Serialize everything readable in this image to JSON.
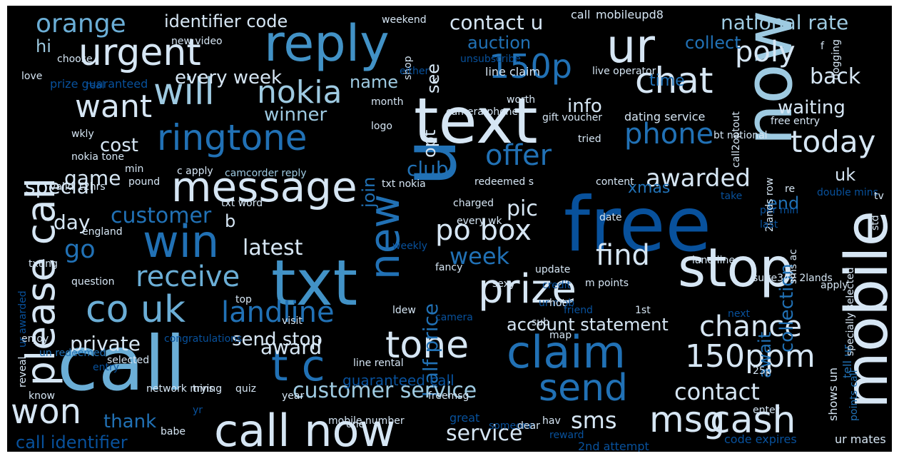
{
  "background": "#000000",
  "palette": {
    "pale": "#d6e6f4",
    "light": "#9ecae1",
    "mid": "#6baed6",
    "blue": "#4292c6",
    "deep": "#2171b5",
    "dark": "#08519c",
    "navy": "#08306b"
  },
  "words": [
    {
      "text": "free",
      "color": "dark"
    },
    {
      "text": "call",
      "color": "mid"
    },
    {
      "text": "text",
      "color": "pale"
    },
    {
      "text": "txt",
      "color": "blue"
    },
    {
      "text": "now",
      "color": "light"
    },
    {
      "text": "mobile",
      "color": "pale"
    },
    {
      "text": "stop",
      "color": "pale"
    },
    {
      "text": "u",
      "color": "deep"
    },
    {
      "text": "ur",
      "color": "pale"
    },
    {
      "text": "reply",
      "color": "blue"
    },
    {
      "text": "call now",
      "color": "pale"
    },
    {
      "text": "claim",
      "color": "deep"
    },
    {
      "text": "win",
      "color": "deep"
    },
    {
      "text": "message",
      "color": "pale"
    },
    {
      "text": "new",
      "color": "deep"
    },
    {
      "text": "please call",
      "color": "pale"
    },
    {
      "text": "prize",
      "color": "pale"
    },
    {
      "text": "won",
      "color": "pale"
    },
    {
      "text": "urgent",
      "color": "pale"
    },
    {
      "text": "ringtone",
      "color": "deep"
    },
    {
      "text": "send",
      "color": "deep"
    },
    {
      "text": "cash",
      "color": "pale"
    },
    {
      "text": "co uk",
      "color": "mid"
    },
    {
      "text": "tone",
      "color": "pale"
    },
    {
      "text": "msg",
      "color": "pale"
    },
    {
      "text": "t c",
      "color": "deep"
    },
    {
      "text": "will",
      "color": "light"
    },
    {
      "text": "chat",
      "color": "pale"
    },
    {
      "text": "150p",
      "color": "deep"
    },
    {
      "text": "landline",
      "color": "deep"
    },
    {
      "text": "nokia",
      "color": "light"
    },
    {
      "text": "receive",
      "color": "mid"
    },
    {
      "text": "want",
      "color": "pale"
    },
    {
      "text": "150ppm",
      "color": "pale"
    },
    {
      "text": "chance",
      "color": "pale"
    },
    {
      "text": "today",
      "color": "pale"
    },
    {
      "text": "phone",
      "color": "deep"
    },
    {
      "text": "offer",
      "color": "deep"
    },
    {
      "text": "po box",
      "color": "pale"
    },
    {
      "text": "find",
      "color": "pale"
    },
    {
      "text": "poly",
      "color": "pale"
    },
    {
      "text": "orange",
      "color": "mid"
    },
    {
      "text": "go",
      "color": "deep"
    },
    {
      "text": "half price",
      "color": "deep"
    },
    {
      "text": "sms",
      "color": "pale"
    },
    {
      "text": "customer service",
      "color": "light"
    },
    {
      "text": "awarded",
      "color": "pale"
    },
    {
      "text": "contact",
      "color": "pale"
    },
    {
      "text": "week",
      "color": "deep"
    },
    {
      "text": "pic",
      "color": "pale"
    },
    {
      "text": "back",
      "color": "pale"
    },
    {
      "text": "customer",
      "color": "deep"
    },
    {
      "text": "latest",
      "color": "pale"
    },
    {
      "text": "service",
      "color": "pale"
    },
    {
      "text": "collection",
      "color": "deep"
    },
    {
      "text": "await",
      "color": "deep"
    },
    {
      "text": "contact u",
      "color": "pale"
    },
    {
      "text": "national rate",
      "color": "light"
    },
    {
      "text": "special",
      "color": "pale"
    },
    {
      "text": "day",
      "color": "pale"
    },
    {
      "text": "game",
      "color": "pale"
    },
    {
      "text": "private",
      "color": "pale"
    },
    {
      "text": "award",
      "color": "pale"
    },
    {
      "text": "account statement",
      "color": "pale"
    },
    {
      "text": "call identifier",
      "color": "dark"
    },
    {
      "text": "thank",
      "color": "deep"
    },
    {
      "text": "waiting",
      "color": "pale"
    },
    {
      "text": "every week",
      "color": "pale"
    },
    {
      "text": "identifier code",
      "color": "pale"
    },
    {
      "text": "club",
      "color": "deep"
    },
    {
      "text": "send stop",
      "color": "pale"
    },
    {
      "text": "name",
      "color": "light"
    },
    {
      "text": "winner",
      "color": "light"
    },
    {
      "text": "auction",
      "color": "deep"
    },
    {
      "text": "cost",
      "color": "pale"
    },
    {
      "text": "opt",
      "color": "pale"
    },
    {
      "text": "join",
      "color": "deep"
    },
    {
      "text": "xmas",
      "color": "deep"
    },
    {
      "text": "info",
      "color": "pale"
    },
    {
      "text": "time",
      "color": "deep"
    },
    {
      "text": "uk",
      "color": "pale"
    },
    {
      "text": "end",
      "color": "deep"
    },
    {
      "text": "hi",
      "color": "light"
    },
    {
      "text": "collect",
      "color": "deep"
    },
    {
      "text": "see",
      "color": "pale"
    },
    {
      "text": "b",
      "color": "pale"
    },
    {
      "text": "guaranteed call",
      "color": "dark"
    },
    {
      "text": "mobileupd8",
      "color": "pale"
    },
    {
      "text": "call",
      "color": "pale"
    },
    {
      "text": "prize guaranteed",
      "color": "dark"
    },
    {
      "text": "dating service",
      "color": "pale"
    },
    {
      "text": "line claim",
      "color": "pale"
    },
    {
      "text": "camcorder reply",
      "color": "light"
    },
    {
      "text": "txt nokia",
      "color": "pale"
    },
    {
      "text": "redeemed s",
      "color": "pale"
    },
    {
      "text": "valid 12hrs",
      "color": "pale"
    },
    {
      "text": "freemsg",
      "color": "pale"
    },
    {
      "text": "great",
      "color": "dark"
    },
    {
      "text": "2nd attempt",
      "color": "dark"
    },
    {
      "text": "code expires",
      "color": "dark"
    },
    {
      "text": "ur mates",
      "color": "pale"
    },
    {
      "text": "points call",
      "color": "deep"
    },
    {
      "text": "shows un",
      "color": "pale"
    },
    {
      "text": "tell ur",
      "color": "deep"
    },
    {
      "text": "sms ac",
      "color": "pale"
    },
    {
      "text": "suite342 2lands",
      "color": "pale"
    },
    {
      "text": "land line",
      "color": "pale"
    },
    {
      "text": "apply",
      "color": "pale"
    },
    {
      "text": "per min",
      "color": "dark"
    },
    {
      "text": "double mins",
      "color": "dark"
    },
    {
      "text": "2lands row",
      "color": "pale"
    },
    {
      "text": "free entry",
      "color": "pale"
    },
    {
      "text": "bt national",
      "color": "pale"
    },
    {
      "text": "tried",
      "color": "pale"
    },
    {
      "text": "content",
      "color": "pale"
    },
    {
      "text": "re",
      "color": "pale"
    },
    {
      "text": "mobile number",
      "color": "pale"
    },
    {
      "text": "babe",
      "color": "pale"
    },
    {
      "text": "know",
      "color": "pale"
    },
    {
      "text": "selected",
      "color": "pale"
    },
    {
      "text": "congratulations",
      "color": "dark"
    },
    {
      "text": "reveal",
      "color": "pale"
    },
    {
      "text": "un redeemed",
      "color": "deep"
    },
    {
      "text": "question",
      "color": "pale"
    },
    {
      "text": "txting",
      "color": "pale"
    },
    {
      "text": "england",
      "color": "pale"
    },
    {
      "text": "txt word",
      "color": "pale"
    },
    {
      "text": "weekly",
      "color": "dark"
    },
    {
      "text": "charged",
      "color": "pale"
    },
    {
      "text": "every wk",
      "color": "pale"
    },
    {
      "text": "date",
      "color": "pale"
    },
    {
      "text": "last",
      "color": "dark"
    },
    {
      "text": "credit",
      "color": "dark"
    },
    {
      "text": "update",
      "color": "pale"
    },
    {
      "text": "ur mob",
      "color": "dark"
    },
    {
      "text": "m points",
      "color": "pale"
    },
    {
      "text": "sexy",
      "color": "pale"
    },
    {
      "text": "fancy",
      "color": "pale"
    },
    {
      "text": "hot",
      "color": "pale"
    },
    {
      "text": "1st",
      "color": "pale"
    },
    {
      "text": "next",
      "color": "dark"
    },
    {
      "text": "top",
      "color": "pale"
    },
    {
      "text": "visit",
      "color": "pale"
    },
    {
      "text": "sub",
      "color": "pale"
    },
    {
      "text": "friend",
      "color": "dark"
    },
    {
      "text": "camera",
      "color": "dark"
    },
    {
      "text": "camera phone",
      "color": "pale"
    },
    {
      "text": "worth",
      "color": "pale"
    },
    {
      "text": "gift voucher",
      "color": "pale"
    },
    {
      "text": "live operator",
      "color": "pale"
    },
    {
      "text": "call2optout",
      "color": "pale"
    },
    {
      "text": "unsubscribe",
      "color": "dark"
    },
    {
      "text": "choose",
      "color": "pale"
    },
    {
      "text": "love",
      "color": "pale"
    },
    {
      "text": "new video",
      "color": "pale"
    },
    {
      "text": "weekend",
      "color": "pale"
    },
    {
      "text": "month",
      "color": "pale"
    },
    {
      "text": "logo",
      "color": "pale"
    },
    {
      "text": "wkly",
      "color": "pale"
    },
    {
      "text": "nokia tone",
      "color": "pale"
    },
    {
      "text": "min",
      "color": "pale"
    },
    {
      "text": "pound",
      "color": "pale"
    },
    {
      "text": "c apply",
      "color": "pale"
    },
    {
      "text": "line rental",
      "color": "pale"
    },
    {
      "text": "25p",
      "color": "pale"
    },
    {
      "text": "network mins",
      "color": "pale"
    },
    {
      "text": "trying",
      "color": "pale"
    },
    {
      "text": "quiz",
      "color": "pale"
    },
    {
      "text": "year",
      "color": "pale"
    },
    {
      "text": "one",
      "color": "pale"
    },
    {
      "text": "someone",
      "color": "dark"
    },
    {
      "text": "dear",
      "color": "pale"
    },
    {
      "text": "hav",
      "color": "pale"
    },
    {
      "text": "reward",
      "color": "dark"
    },
    {
      "text": "enter",
      "color": "pale"
    },
    {
      "text": "map",
      "color": "pale"
    },
    {
      "text": "enjoy",
      "color": "pale"
    },
    {
      "text": "yr",
      "color": "dark"
    },
    {
      "text": "ur awarded",
      "color": "dark"
    },
    {
      "text": "specially selected",
      "color": "pale"
    },
    {
      "text": "take",
      "color": "dark"
    },
    {
      "text": "tv",
      "color": "pale"
    },
    {
      "text": "std",
      "color": "pale"
    },
    {
      "text": "dogging",
      "color": "pale"
    },
    {
      "text": "shop",
      "color": "pale"
    },
    {
      "text": "either",
      "color": "dark"
    },
    {
      "text": "x",
      "color": "pale"
    },
    {
      "text": "real",
      "color": "dark"
    },
    {
      "text": "entry",
      "color": "dark"
    },
    {
      "text": "ldew",
      "color": "pale"
    },
    {
      "text": "f",
      "color": "pale"
    }
  ]
}
